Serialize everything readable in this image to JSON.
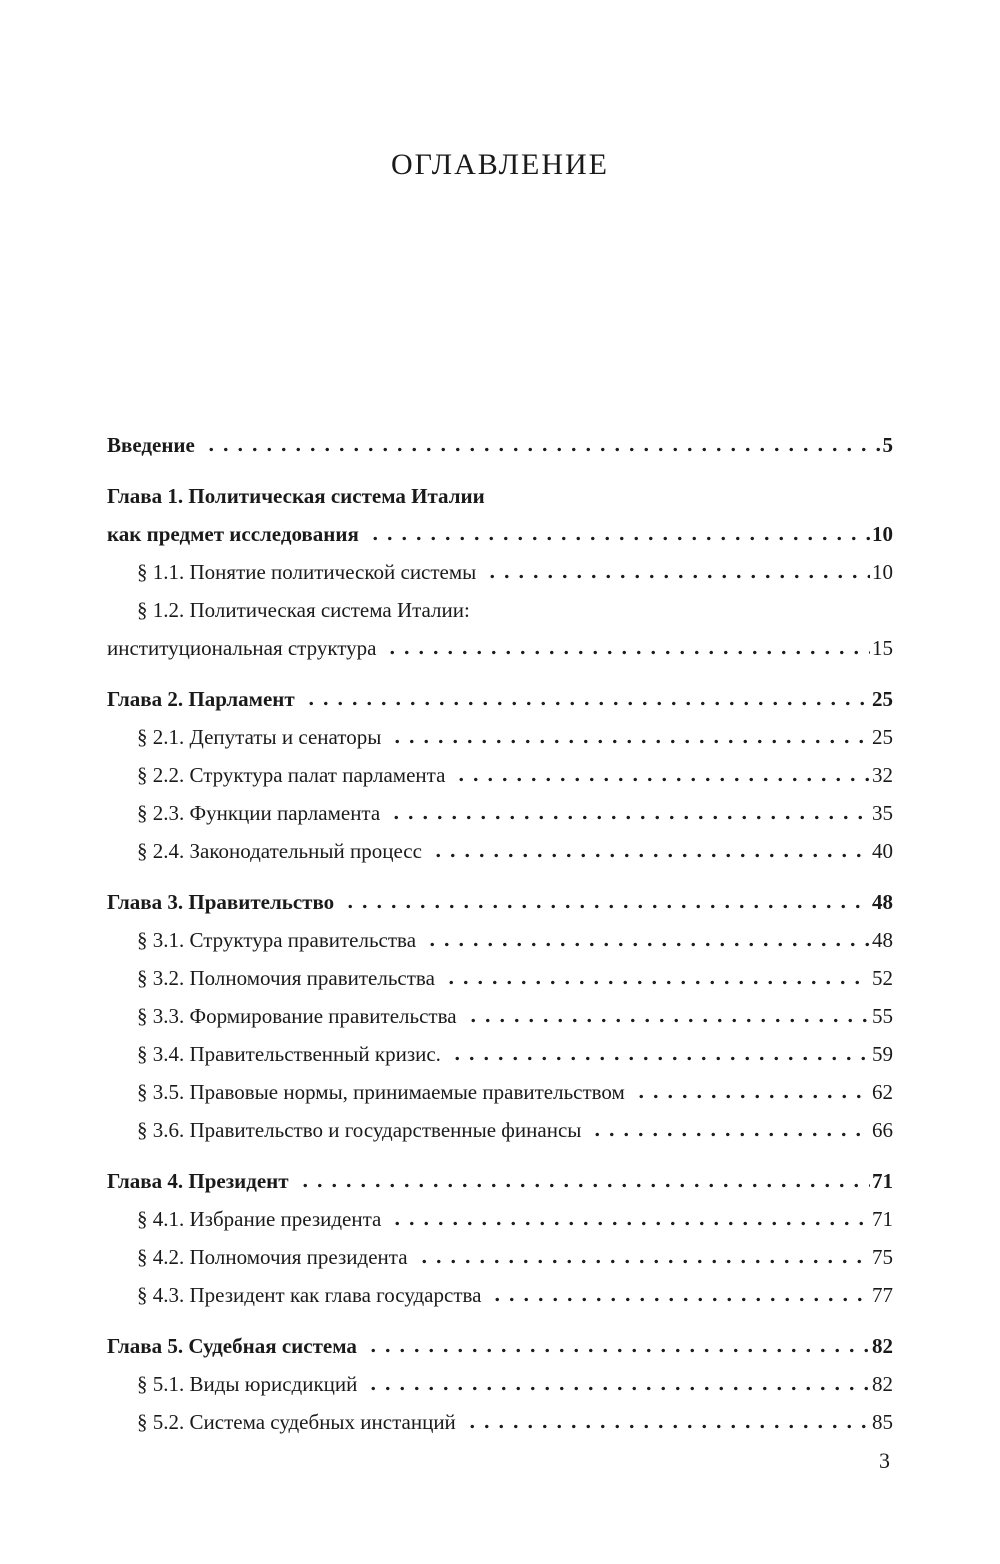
{
  "page": {
    "title": "ОГЛАВЛЕНИЕ",
    "footer_page_number": "3",
    "text_color": "#1a1a1a",
    "background_color": "#ffffff"
  },
  "toc": {
    "entries": [
      {
        "bold": true,
        "indent": false,
        "new_group": false,
        "lines": [
          "Введение"
        ],
        "page": "5"
      },
      {
        "bold": true,
        "indent": false,
        "new_group": true,
        "lines": [
          "Глава 1. Политическая система Италии",
          "как предмет исследования"
        ],
        "page": "10"
      },
      {
        "bold": false,
        "indent": true,
        "new_group": false,
        "lines": [
          "§ 1.1. Понятие политической системы"
        ],
        "page": "10"
      },
      {
        "bold": false,
        "indent": true,
        "new_group": false,
        "lines": [
          "§ 1.2. Политическая система Италии:",
          "институциональная структура"
        ],
        "page": "15"
      },
      {
        "bold": true,
        "indent": false,
        "new_group": true,
        "lines": [
          "Глава 2. Парламент"
        ],
        "page": "25"
      },
      {
        "bold": false,
        "indent": true,
        "new_group": false,
        "lines": [
          "§ 2.1. Депутаты и сенаторы"
        ],
        "page": "25"
      },
      {
        "bold": false,
        "indent": true,
        "new_group": false,
        "lines": [
          "§ 2.2. Структура палат парламента"
        ],
        "page": "32"
      },
      {
        "bold": false,
        "indent": true,
        "new_group": false,
        "lines": [
          "§ 2.3. Функции парламента"
        ],
        "page": "35"
      },
      {
        "bold": false,
        "indent": true,
        "new_group": false,
        "lines": [
          "§ 2.4. Законодательный процесс"
        ],
        "page": "40"
      },
      {
        "bold": true,
        "indent": false,
        "new_group": true,
        "lines": [
          "Глава 3. Правительство"
        ],
        "page": "48"
      },
      {
        "bold": false,
        "indent": true,
        "new_group": false,
        "lines": [
          "§ 3.1. Структура правительства"
        ],
        "page": "48"
      },
      {
        "bold": false,
        "indent": true,
        "new_group": false,
        "lines": [
          "§ 3.2. Полномочия правительства"
        ],
        "page": "52"
      },
      {
        "bold": false,
        "indent": true,
        "new_group": false,
        "lines": [
          "§ 3.3. Формирование правительства"
        ],
        "page": "55"
      },
      {
        "bold": false,
        "indent": true,
        "new_group": false,
        "lines": [
          "§ 3.4. Правительственный кризис."
        ],
        "page": "59"
      },
      {
        "bold": false,
        "indent": true,
        "new_group": false,
        "lines": [
          "§ 3.5. Правовые нормы, принимаемые правительством"
        ],
        "page": "62"
      },
      {
        "bold": false,
        "indent": true,
        "new_group": false,
        "lines": [
          "§ 3.6. Правительство и государственные финансы"
        ],
        "page": "66"
      },
      {
        "bold": true,
        "indent": false,
        "new_group": true,
        "lines": [
          "Глава 4. Президент"
        ],
        "page": "71"
      },
      {
        "bold": false,
        "indent": true,
        "new_group": false,
        "lines": [
          "§ 4.1. Избрание президента"
        ],
        "page": "71"
      },
      {
        "bold": false,
        "indent": true,
        "new_group": false,
        "lines": [
          "§ 4.2. Полномочия президента"
        ],
        "page": "75"
      },
      {
        "bold": false,
        "indent": true,
        "new_group": false,
        "lines": [
          "§ 4.3. Президент как глава государства"
        ],
        "page": "77"
      },
      {
        "bold": true,
        "indent": false,
        "new_group": true,
        "lines": [
          "Глава 5. Судебная система"
        ],
        "page": "82"
      },
      {
        "bold": false,
        "indent": true,
        "new_group": false,
        "lines": [
          "§ 5.1. Виды юрисдикций"
        ],
        "page": "82"
      },
      {
        "bold": false,
        "indent": true,
        "new_group": false,
        "lines": [
          "§ 5.2. Система судебных инстанций"
        ],
        "page": "85"
      }
    ]
  }
}
